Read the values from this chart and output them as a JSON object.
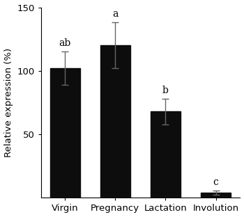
{
  "categories": [
    "Virgin",
    "Pregnancy",
    "Lactation",
    "Involution"
  ],
  "values": [
    102,
    120,
    68,
    4
  ],
  "errors": [
    13,
    18,
    10,
    1.5
  ],
  "significance_labels": [
    "ab",
    "a",
    "b",
    "c"
  ],
  "bar_color": "#0d0d0d",
  "error_color": "#666666",
  "ylabel": "Relative expression (%)",
  "ylim": [
    0,
    150
  ],
  "yticks": [
    50,
    100,
    150
  ],
  "bar_width": 0.6,
  "label_fontsize": 9.5,
  "tick_fontsize": 9.5,
  "sig_fontsize": 10,
  "background_color": "#ffffff"
}
